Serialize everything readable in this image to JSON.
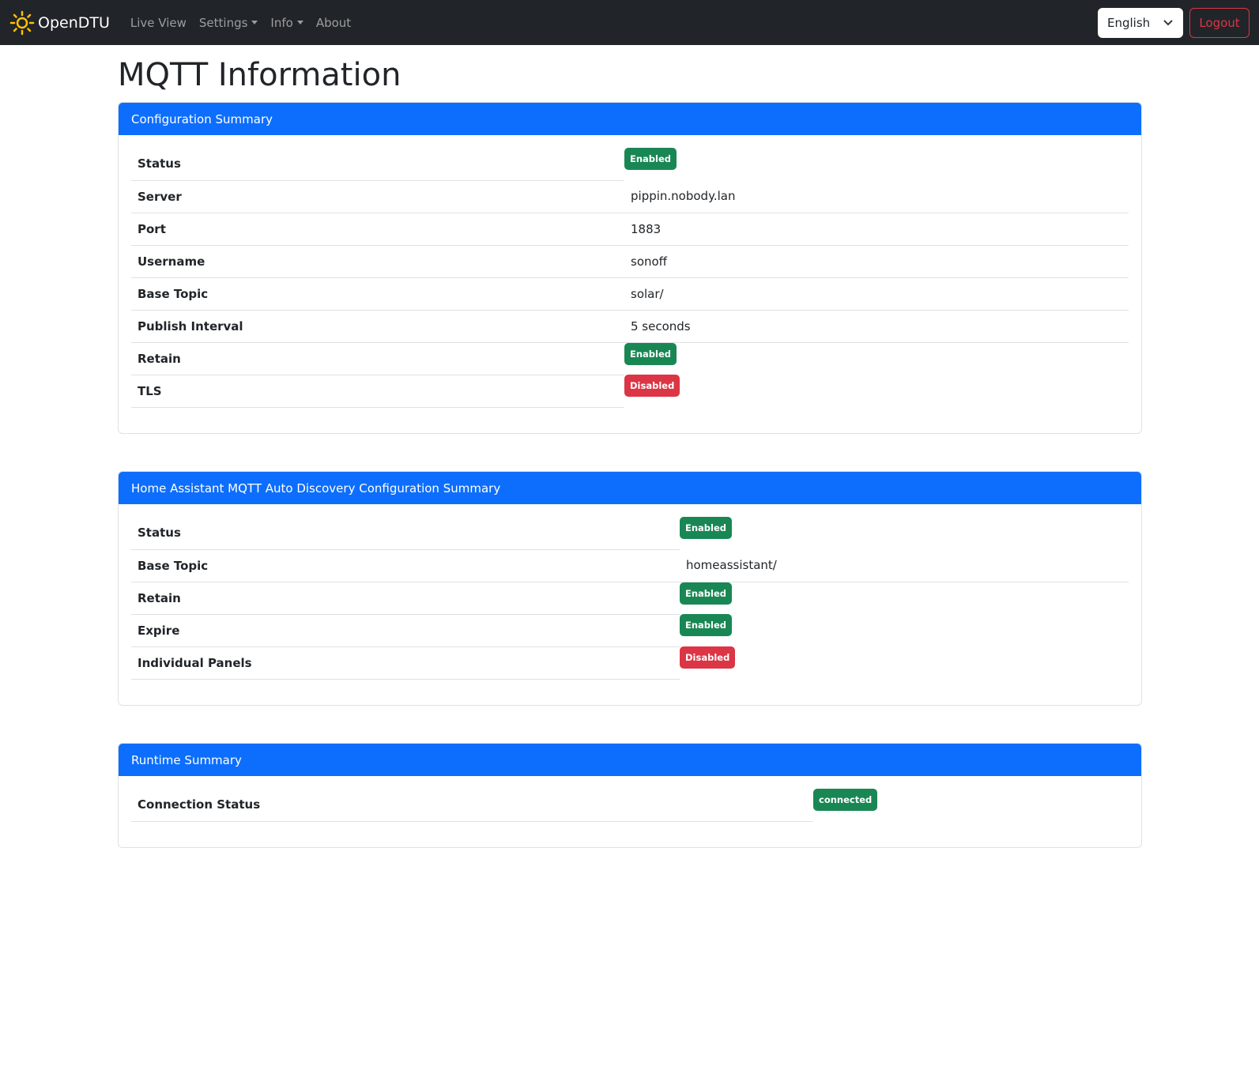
{
  "nav": {
    "brand": "OpenDTU",
    "brand_icon": "sun-icon",
    "links": [
      {
        "label": "Live View"
      },
      {
        "label": "Settings",
        "dropdown": true
      },
      {
        "label": "Info",
        "dropdown": true
      },
      {
        "label": "About"
      }
    ],
    "language": "English",
    "logout": "Logout"
  },
  "page_title": "MQTT Information",
  "config": {
    "title": "Configuration Summary",
    "rows": [
      {
        "label": "Status",
        "badge": "Enabled",
        "color": "#198754"
      },
      {
        "label": "Server",
        "value": "pippin.nobody.lan"
      },
      {
        "label": "Port",
        "value": "1883"
      },
      {
        "label": "Username",
        "value": "sonoff"
      },
      {
        "label": "Base Topic",
        "value": "solar/"
      },
      {
        "label": "Publish Interval",
        "value": "5 seconds"
      },
      {
        "label": "Retain",
        "badge": "Enabled",
        "color": "#198754"
      },
      {
        "label": "TLS",
        "badge": "Disabled",
        "color": "#dc3545"
      }
    ]
  },
  "hass": {
    "title": "Home Assistant MQTT Auto Discovery Configuration Summary",
    "rows": [
      {
        "label": "Status",
        "badge": "Enabled",
        "color": "#198754"
      },
      {
        "label": "Base Topic",
        "value": "homeassistant/"
      },
      {
        "label": "Retain",
        "badge": "Enabled",
        "color": "#198754"
      },
      {
        "label": "Expire",
        "badge": "Enabled",
        "color": "#198754"
      },
      {
        "label": "Individual Panels",
        "badge": "Disabled",
        "color": "#dc3545"
      }
    ]
  },
  "runtime": {
    "title": "Runtime Summary",
    "rows": [
      {
        "label": "Connection Status",
        "badge": "connected",
        "color": "#198754"
      }
    ]
  }
}
